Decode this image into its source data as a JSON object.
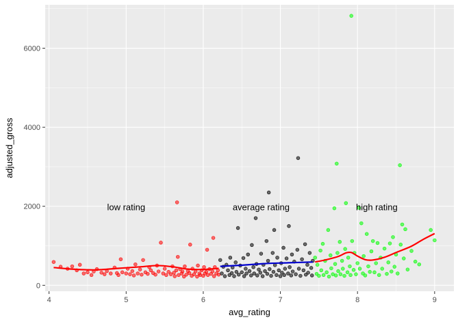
{
  "chart_data": {
    "type": "scatter",
    "title": "",
    "xlabel": "avg_rating",
    "ylabel": "adjusted_gross",
    "xlim": [
      3.95,
      9.25
    ],
    "ylim": [
      -150,
      7100
    ],
    "x_ticks": [
      4,
      5,
      6,
      7,
      8,
      9
    ],
    "y_ticks": [
      0,
      2000,
      4000,
      6000
    ],
    "grid": true,
    "legend": "none",
    "colors": {
      "panel_bg": "#ebebeb",
      "grid_major": "#ffffff",
      "low": "#ff0000",
      "average": "#000000",
      "high": "#00ff00",
      "smooth_low": "#ff0000",
      "smooth_average": "#0000cc",
      "smooth_high": "#ff0000"
    },
    "annotations": [
      {
        "text": "low rating",
        "x": 5.0,
        "y": 1960
      },
      {
        "text": "average rating",
        "x": 6.75,
        "y": 1960
      },
      {
        "text": "high rating",
        "x": 8.25,
        "y": 1960
      }
    ],
    "series": [
      {
        "group": "low",
        "points": [
          [
            4.06,
            590
          ],
          [
            4.15,
            470
          ],
          [
            4.24,
            420
          ],
          [
            4.3,
            480
          ],
          [
            4.36,
            380
          ],
          [
            4.4,
            520
          ],
          [
            4.45,
            300
          ],
          [
            4.5,
            330
          ],
          [
            4.55,
            260
          ],
          [
            4.58,
            350
          ],
          [
            4.62,
            410
          ],
          [
            4.68,
            320
          ],
          [
            4.72,
            280
          ],
          [
            4.75,
            360
          ],
          [
            4.8,
            300
          ],
          [
            4.85,
            450
          ],
          [
            4.88,
            310
          ],
          [
            4.9,
            260
          ],
          [
            4.93,
            660
          ],
          [
            4.95,
            330
          ],
          [
            5.0,
            300
          ],
          [
            5.02,
            420
          ],
          [
            5.05,
            280
          ],
          [
            5.08,
            360
          ],
          [
            5.1,
            250
          ],
          [
            5.12,
            530
          ],
          [
            5.15,
            300
          ],
          [
            5.18,
            400
          ],
          [
            5.2,
            270
          ],
          [
            5.22,
            640
          ],
          [
            5.25,
            330
          ],
          [
            5.28,
            290
          ],
          [
            5.3,
            460
          ],
          [
            5.32,
            380
          ],
          [
            5.35,
            310
          ],
          [
            5.38,
            270
          ],
          [
            5.4,
            500
          ],
          [
            5.42,
            350
          ],
          [
            5.45,
            1080
          ],
          [
            5.48,
            300
          ],
          [
            5.5,
            420
          ],
          [
            5.52,
            260
          ],
          [
            5.55,
            340
          ],
          [
            5.58,
            280
          ],
          [
            5.6,
            480
          ],
          [
            5.62,
            320
          ],
          [
            5.63,
            230
          ],
          [
            5.65,
            380
          ],
          [
            5.66,
            2100
          ],
          [
            5.67,
            720
          ],
          [
            5.68,
            260
          ],
          [
            5.7,
            410
          ],
          [
            5.72,
            300
          ],
          [
            5.73,
            350
          ],
          [
            5.75,
            220
          ],
          [
            5.76,
            480
          ],
          [
            5.78,
            270
          ],
          [
            5.8,
            360
          ],
          [
            5.82,
            310
          ],
          [
            5.83,
            1030
          ],
          [
            5.85,
            240
          ],
          [
            5.86,
            420
          ],
          [
            5.88,
            280
          ],
          [
            5.9,
            350
          ],
          [
            5.92,
            220
          ],
          [
            5.93,
            500
          ],
          [
            5.95,
            300
          ],
          [
            5.96,
            260
          ],
          [
            5.98,
            380
          ],
          [
            6.0,
            240
          ],
          [
            6.01,
            460
          ],
          [
            6.02,
            300
          ],
          [
            6.04,
            340
          ],
          [
            6.05,
            900
          ],
          [
            6.06,
            260
          ],
          [
            6.08,
            410
          ],
          [
            6.1,
            290
          ],
          [
            6.12,
            350
          ],
          [
            6.13,
            1200
          ],
          [
            6.14,
            230
          ],
          [
            6.15,
            460
          ],
          [
            6.17,
            300
          ],
          [
            6.19,
            380
          ],
          [
            6.2,
            270
          ]
        ]
      },
      {
        "group": "average",
        "points": [
          [
            6.22,
            640
          ],
          [
            6.24,
            300
          ],
          [
            6.26,
            470
          ],
          [
            6.28,
            230
          ],
          [
            6.3,
            520
          ],
          [
            6.32,
            380
          ],
          [
            6.34,
            260
          ],
          [
            6.35,
            700
          ],
          [
            6.37,
            310
          ],
          [
            6.38,
            450
          ],
          [
            6.4,
            230
          ],
          [
            6.42,
            580
          ],
          [
            6.43,
            340
          ],
          [
            6.45,
            1450
          ],
          [
            6.46,
            270
          ],
          [
            6.48,
            500
          ],
          [
            6.5,
            330
          ],
          [
            6.52,
            690
          ],
          [
            6.53,
            230
          ],
          [
            6.55,
            420
          ],
          [
            6.56,
            300
          ],
          [
            6.58,
            780
          ],
          [
            6.6,
            360
          ],
          [
            6.62,
            250
          ],
          [
            6.63,
            1020
          ],
          [
            6.65,
            460
          ],
          [
            6.66,
            300
          ],
          [
            6.68,
            1700
          ],
          [
            6.69,
            540
          ],
          [
            6.7,
            250
          ],
          [
            6.72,
            400
          ],
          [
            6.74,
            320
          ],
          [
            6.75,
            800
          ],
          [
            6.77,
            230
          ],
          [
            6.78,
            520
          ],
          [
            6.8,
            360
          ],
          [
            6.82,
            1120
          ],
          [
            6.83,
            290
          ],
          [
            6.84,
            620
          ],
          [
            6.85,
            2350
          ],
          [
            6.86,
            410
          ],
          [
            6.88,
            240
          ],
          [
            6.9,
            820
          ],
          [
            6.91,
            340
          ],
          [
            6.92,
            1400
          ],
          [
            6.93,
            510
          ],
          [
            6.95,
            260
          ],
          [
            6.96,
            700
          ],
          [
            6.98,
            380
          ],
          [
            7.0,
            230
          ],
          [
            7.01,
            560
          ],
          [
            7.02,
            320
          ],
          [
            7.04,
            950
          ],
          [
            7.05,
            260
          ],
          [
            7.06,
            420
          ],
          [
            7.08,
            680
          ],
          [
            7.1,
            300
          ],
          [
            7.11,
            1500
          ],
          [
            7.12,
            460
          ],
          [
            7.14,
            250
          ],
          [
            7.15,
            780
          ],
          [
            7.16,
            350
          ],
          [
            7.18,
            600
          ],
          [
            7.2,
            280
          ],
          [
            7.22,
            900
          ],
          [
            7.23,
            3220
          ],
          [
            7.24,
            420
          ],
          [
            7.26,
            240
          ],
          [
            7.28,
            660
          ],
          [
            7.3,
            380
          ],
          [
            7.32,
            1040
          ],
          [
            7.33,
            270
          ],
          [
            7.35,
            520
          ],
          [
            7.36,
            320
          ],
          [
            7.38,
            820
          ],
          [
            7.4,
            440
          ],
          [
            7.41,
            250
          ],
          [
            7.42,
            620
          ]
        ]
      },
      {
        "group": "high",
        "points": [
          [
            7.45,
            700
          ],
          [
            7.47,
            290
          ],
          [
            7.48,
            520
          ],
          [
            7.5,
            240
          ],
          [
            7.52,
            880
          ],
          [
            7.53,
            380
          ],
          [
            7.55,
            1050
          ],
          [
            7.56,
            260
          ],
          [
            7.58,
            620
          ],
          [
            7.6,
            330
          ],
          [
            7.62,
            1400
          ],
          [
            7.63,
            220
          ],
          [
            7.65,
            760
          ],
          [
            7.66,
            430
          ],
          [
            7.68,
            280
          ],
          [
            7.7,
            1950
          ],
          [
            7.71,
            540
          ],
          [
            7.72,
            250
          ],
          [
            7.73,
            3080
          ],
          [
            7.74,
            820
          ],
          [
            7.75,
            360
          ],
          [
            7.77,
            1100
          ],
          [
            7.78,
            280
          ],
          [
            7.8,
            620
          ],
          [
            7.81,
            420
          ],
          [
            7.83,
            240
          ],
          [
            7.84,
            920
          ],
          [
            7.85,
            2080
          ],
          [
            7.87,
            330
          ],
          [
            7.88,
            700
          ],
          [
            7.9,
            480
          ],
          [
            7.91,
            260
          ],
          [
            7.92,
            6820
          ],
          [
            7.93,
            1120
          ],
          [
            7.95,
            390
          ],
          [
            7.96,
            820
          ],
          [
            7.98,
            280
          ],
          [
            8.0,
            560
          ],
          [
            8.02,
            1960
          ],
          [
            8.03,
            420
          ],
          [
            8.05,
            1570
          ],
          [
            8.07,
            300
          ],
          [
            8.08,
            740
          ],
          [
            8.1,
            250
          ],
          [
            8.12,
            1300
          ],
          [
            8.14,
            480
          ],
          [
            8.16,
            340
          ],
          [
            8.18,
            860
          ],
          [
            8.2,
            1120
          ],
          [
            8.22,
            330
          ],
          [
            8.24,
            560
          ],
          [
            8.26,
            1070
          ],
          [
            8.28,
            260
          ],
          [
            8.3,
            700
          ],
          [
            8.32,
            420
          ],
          [
            8.35,
            930
          ],
          [
            8.38,
            290
          ],
          [
            8.4,
            580
          ],
          [
            8.42,
            1060
          ],
          [
            8.44,
            350
          ],
          [
            8.46,
            1220
          ],
          [
            8.48,
            470
          ],
          [
            8.5,
            780
          ],
          [
            8.52,
            300
          ],
          [
            8.55,
            3040
          ],
          [
            8.56,
            1030
          ],
          [
            8.58,
            1540
          ],
          [
            8.6,
            680
          ],
          [
            8.62,
            1420
          ],
          [
            8.65,
            400
          ],
          [
            8.7,
            870
          ],
          [
            8.75,
            600
          ],
          [
            8.8,
            530
          ],
          [
            8.95,
            1400
          ],
          [
            9.0,
            1140
          ]
        ]
      }
    ],
    "smooth": [
      {
        "group": "low",
        "points": [
          [
            4.06,
            450
          ],
          [
            4.3,
            410
          ],
          [
            4.6,
            390
          ],
          [
            4.9,
            430
          ],
          [
            5.2,
            470
          ],
          [
            5.4,
            500
          ],
          [
            5.6,
            470
          ],
          [
            5.8,
            410
          ],
          [
            6.0,
            400
          ],
          [
            6.2,
            430
          ]
        ]
      },
      {
        "group": "average",
        "points": [
          [
            6.22,
            480
          ],
          [
            6.5,
            510
          ],
          [
            6.8,
            550
          ],
          [
            7.1,
            570
          ],
          [
            7.42,
            590
          ]
        ]
      },
      {
        "group": "high",
        "points": [
          [
            7.45,
            590
          ],
          [
            7.6,
            650
          ],
          [
            7.75,
            730
          ],
          [
            7.85,
            820
          ],
          [
            7.92,
            830
          ],
          [
            8.0,
            740
          ],
          [
            8.1,
            650
          ],
          [
            8.2,
            640
          ],
          [
            8.35,
            710
          ],
          [
            8.5,
            830
          ],
          [
            8.7,
            990
          ],
          [
            8.85,
            1160
          ],
          [
            9.0,
            1310
          ]
        ]
      }
    ]
  }
}
